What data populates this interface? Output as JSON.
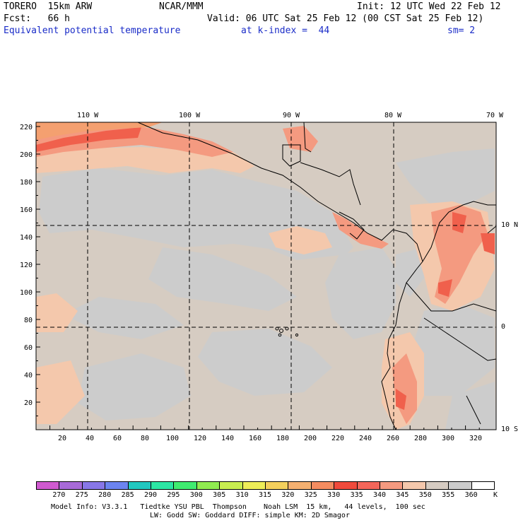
{
  "header": {
    "line1_left": "TORERO  15km ARW",
    "line1_center": "NCAR/MMM",
    "line1_right": "Init: 12 UTC Wed 22 Feb 12",
    "line2_left": "Fcst:   66 h",
    "line2_right": "Valid: 06 UTC Sat 25 Feb 12 (00 CST Sat 25 Feb 12)",
    "line3_field": "Equivalent potential temperature",
    "line3_level": "at k-index =  44",
    "line3_smooth": "sm= 2"
  },
  "map": {
    "top_lon_labels": [
      "110 W",
      "100 W",
      "90 W",
      "80 W",
      "70 W"
    ],
    "right_lat_labels": [
      "10 N",
      "0",
      "10 S"
    ],
    "left_grid_labels": [
      "220",
      "200",
      "180",
      "160",
      "140",
      "120",
      "100",
      "80",
      "60",
      "40",
      "20"
    ],
    "bottom_grid_labels": [
      "20",
      "40",
      "60",
      "80",
      "100",
      "120",
      "140",
      "160",
      "180",
      "200",
      "220",
      "240",
      "260",
      "280",
      "300",
      "320"
    ]
  },
  "legend": {
    "unit": "K",
    "labels": [
      "270",
      "275",
      "280",
      "285",
      "290",
      "295",
      "300",
      "305",
      "310",
      "315",
      "320",
      "325",
      "330",
      "335",
      "340",
      "345",
      "350",
      "355",
      "360"
    ],
    "colors": [
      "#d05ad0",
      "#a86ad8",
      "#8877e8",
      "#6c84f0",
      "#22c8c0",
      "#2ce6a4",
      "#40ec70",
      "#90ec50",
      "#c8ee50",
      "#eeee58",
      "#f4d05c",
      "#f4b070",
      "#f48c60",
      "#f04a3c",
      "#f4665a",
      "#f49a80",
      "#f4c8ac",
      "#d6ccc2",
      "#cccccc",
      "#ffffff"
    ]
  },
  "footer": {
    "line1": "Model Info: V3.3.1   Tiedtke YSU PBL  Thompson    Noah LSM  15 km,   44 levels,  100 sec",
    "line2": "LW: Godd SW: Goddard DIFF: simple KM: 2D Smagor"
  }
}
